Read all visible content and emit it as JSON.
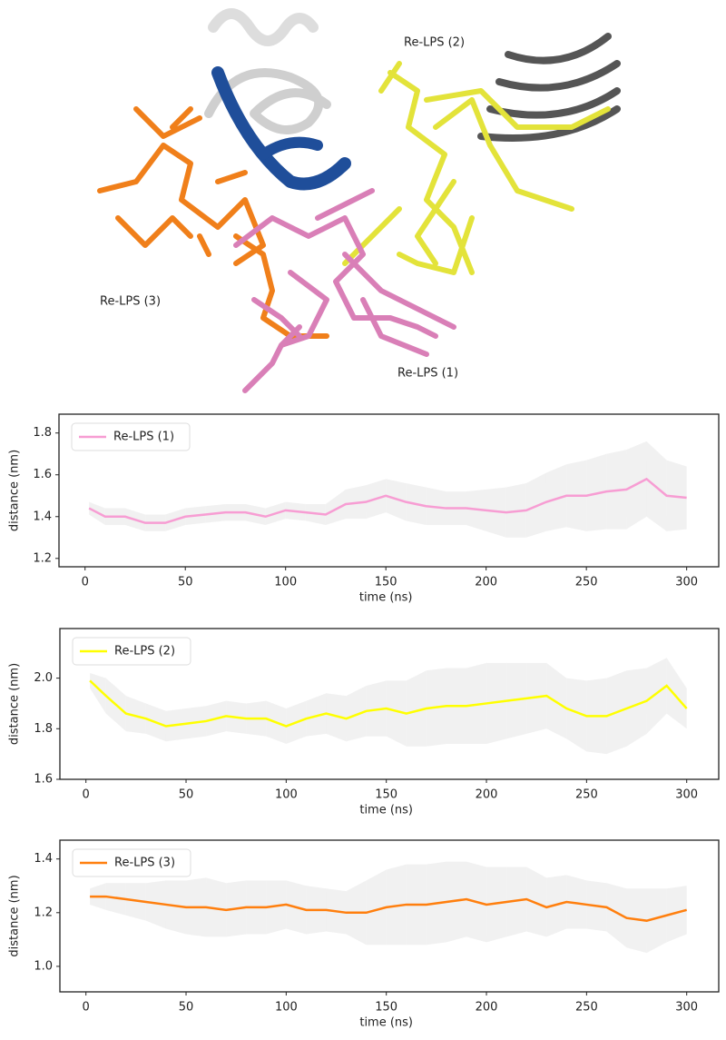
{
  "structure_labels": [
    "Re-LPS (2)",
    "Re-LPS (3)",
    "Re-LPS (1)"
  ],
  "chart_data": [
    {
      "type": "line",
      "xlabel": "time (ns)",
      "ylabel": "distance (nm)",
      "legend": "upper left",
      "x": [
        2,
        10,
        20,
        30,
        40,
        50,
        60,
        70,
        80,
        90,
        100,
        110,
        120,
        130,
        140,
        150,
        160,
        170,
        180,
        190,
        200,
        210,
        220,
        230,
        240,
        250,
        260,
        270,
        280,
        290,
        300
      ],
      "series": [
        {
          "name": "Re-LPS (1)",
          "color": "#f79dd3",
          "values": [
            1.44,
            1.4,
            1.4,
            1.37,
            1.37,
            1.4,
            1.41,
            1.42,
            1.42,
            1.4,
            1.43,
            1.42,
            1.41,
            1.46,
            1.47,
            1.5,
            1.47,
            1.45,
            1.44,
            1.44,
            1.43,
            1.42,
            1.43,
            1.47,
            1.5,
            1.5,
            1.52,
            1.53,
            1.58,
            1.5,
            1.49
          ],
          "errors": [
            0.03,
            0.04,
            0.04,
            0.04,
            0.04,
            0.04,
            0.04,
            0.04,
            0.04,
            0.04,
            0.04,
            0.04,
            0.05,
            0.07,
            0.08,
            0.08,
            0.09,
            0.09,
            0.08,
            0.08,
            0.1,
            0.12,
            0.13,
            0.14,
            0.15,
            0.17,
            0.18,
            0.19,
            0.18,
            0.17,
            0.15
          ]
        }
      ],
      "xlim": [
        -13,
        316
      ],
      "xticks": [
        0,
        50,
        100,
        150,
        200,
        250,
        300
      ],
      "ylim": [
        1.16,
        1.89
      ],
      "yticks": [
        1.2,
        1.4,
        1.6,
        1.8
      ]
    },
    {
      "type": "line",
      "xlabel": "time (ns)",
      "ylabel": "distance (nm)",
      "legend": "upper left",
      "x": [
        2,
        10,
        20,
        30,
        40,
        50,
        60,
        70,
        80,
        90,
        100,
        110,
        120,
        130,
        140,
        150,
        160,
        170,
        180,
        190,
        200,
        210,
        220,
        230,
        240,
        250,
        260,
        270,
        280,
        290,
        300
      ],
      "series": [
        {
          "name": "Re-LPS (2)",
          "color": "#ffff00",
          "values": [
            1.99,
            1.93,
            1.86,
            1.84,
            1.81,
            1.82,
            1.83,
            1.85,
            1.84,
            1.84,
            1.81,
            1.84,
            1.86,
            1.84,
            1.87,
            1.88,
            1.86,
            1.88,
            1.89,
            1.89,
            1.9,
            1.91,
            1.92,
            1.93,
            1.88,
            1.85,
            1.85,
            1.88,
            1.91,
            1.97,
            1.88
          ],
          "errors": [
            0.03,
            0.07,
            0.07,
            0.06,
            0.06,
            0.06,
            0.06,
            0.06,
            0.06,
            0.07,
            0.07,
            0.07,
            0.08,
            0.09,
            0.1,
            0.11,
            0.13,
            0.15,
            0.15,
            0.15,
            0.16,
            0.15,
            0.14,
            0.13,
            0.12,
            0.14,
            0.15,
            0.15,
            0.13,
            0.11,
            0.08
          ]
        }
      ],
      "xlim": [
        -13,
        316
      ],
      "xticks": [
        0,
        50,
        100,
        150,
        200,
        250,
        300
      ],
      "ylim": [
        1.6,
        2.196
      ],
      "yticks": [
        1.6,
        1.8,
        {
          "value": 2,
          "label": "2.0"
        }
      ]
    },
    {
      "type": "line",
      "xlabel": "time (ns)",
      "ylabel": "distance (nm)",
      "legend": "upper left",
      "x": [
        2,
        10,
        20,
        30,
        40,
        50,
        60,
        70,
        80,
        90,
        100,
        110,
        120,
        130,
        140,
        150,
        160,
        170,
        180,
        190,
        200,
        210,
        220,
        230,
        240,
        250,
        260,
        270,
        280,
        290,
        300
      ],
      "series": [
        {
          "name": "Re-LPS (3)",
          "color": "#ff7f0e",
          "values": [
            1.26,
            1.26,
            1.25,
            1.24,
            1.23,
            1.22,
            1.22,
            1.21,
            1.22,
            1.22,
            1.23,
            1.21,
            1.21,
            1.2,
            1.2,
            1.22,
            1.23,
            1.23,
            1.24,
            1.25,
            1.23,
            1.24,
            1.25,
            1.22,
            1.24,
            1.23,
            1.22,
            1.18,
            1.17,
            1.19,
            1.21
          ],
          "errors": [
            0.03,
            0.05,
            0.06,
            0.07,
            0.09,
            0.1,
            0.11,
            0.1,
            0.1,
            0.1,
            0.09,
            0.09,
            0.08,
            0.08,
            0.12,
            0.14,
            0.15,
            0.15,
            0.15,
            0.14,
            0.14,
            0.13,
            0.12,
            0.11,
            0.1,
            0.09,
            0.09,
            0.11,
            0.12,
            0.1,
            0.09
          ]
        }
      ],
      "xlim": [
        -13,
        316
      ],
      "xticks": [
        0,
        50,
        100,
        150,
        200,
        250,
        300
      ],
      "ylim": [
        0.905,
        1.47
      ],
      "yticks": [
        {
          "value": 1,
          "label": "1.0"
        },
        1.2,
        1.4
      ]
    }
  ]
}
